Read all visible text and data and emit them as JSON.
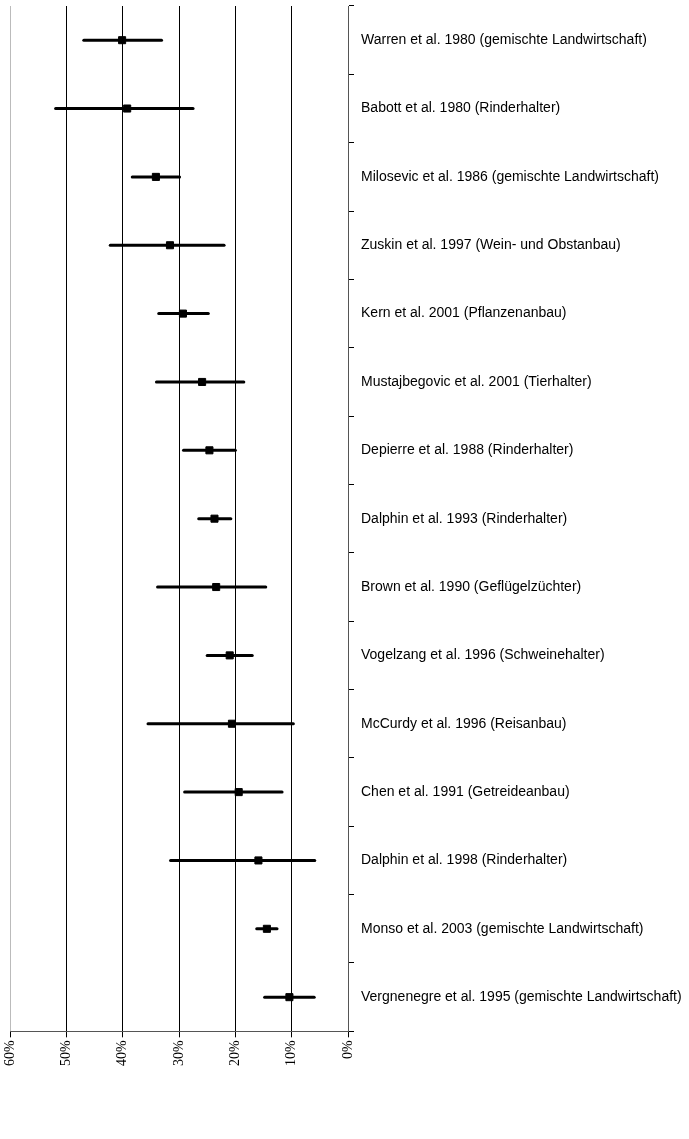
{
  "chart_data": {
    "type": "scatter",
    "orientation": "horizontal",
    "categories": [
      "Warren et al. 1980 (gemischte Landwirtschaft)",
      "Babott et al. 1980 (Rinderhalter)",
      "Milosevic et al. 1986 (gemischte Landwirtschaft)",
      "Zuskin et al. 1997 (Wein- und Obstanbau)",
      "Kern et al. 2001 (Pflanzenanbau)",
      "Mustajbegovic et al. 2001 (Tierhalter)",
      "Depierre et al. 1988 (Rinderhalter)",
      "Dalphin et al. 1993 (Rinderhalter)",
      "Brown et al. 1990 (Geflügelzüchter)",
      "Vogelzang et al. 1996 (Schweinehalter)",
      "McCurdy et al. 1996 (Reisanbau)",
      "Chen et al. 1991 (Getreideanbau)",
      "Dalphin et al. 1998 (Rinderhalter)",
      "Monso et al. 2003 (gemischte Landwirtschaft)",
      "Vergnenegre et al. 1995 (gemischte Landwirtschaft)"
    ],
    "values": [
      40.1,
      39.2,
      34.1,
      31.6,
      29.3,
      25.9,
      24.6,
      23.7,
      23.4,
      21.0,
      20.6,
      19.4,
      15.9,
      14.4,
      10.4
    ],
    "errors": [
      [
        33.1,
        46.9
      ],
      [
        27.5,
        51.9
      ],
      [
        29.9,
        38.3
      ],
      [
        22.0,
        42.2
      ],
      [
        24.8,
        33.6
      ],
      [
        18.5,
        34.0
      ],
      [
        20.0,
        29.2
      ],
      [
        20.8,
        26.5
      ],
      [
        14.6,
        33.8
      ],
      [
        17.0,
        25.0
      ],
      [
        9.7,
        35.5
      ],
      [
        11.7,
        29.0
      ],
      [
        5.9,
        31.5
      ],
      [
        12.6,
        16.2
      ],
      [
        6.0,
        14.8
      ]
    ],
    "color": "#000000",
    "marker": "square",
    "grid": "x",
    "xlim": [
      60,
      0
    ],
    "xticks": [
      {
        "value": 60,
        "label": "60%"
      },
      {
        "value": 50,
        "label": "50%"
      },
      {
        "value": 40,
        "label": "40%"
      },
      {
        "value": 30,
        "label": "30%"
      },
      {
        "value": 20,
        "label": "20%"
      },
      {
        "value": 10,
        "label": "10%"
      },
      {
        "value": 0,
        "label": "0%"
      }
    ]
  }
}
